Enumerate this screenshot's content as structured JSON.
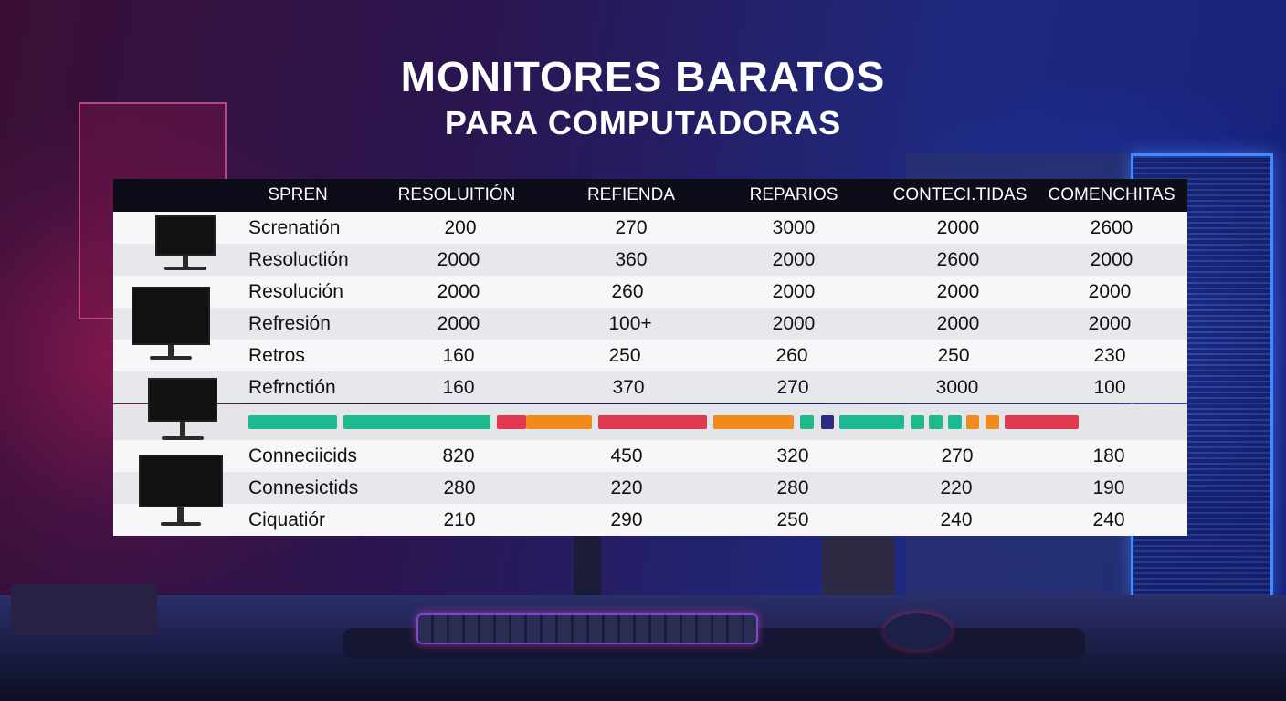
{
  "title": {
    "line1": "MONITORES BARATOS",
    "line2": "PARA COMPUTADORAS"
  },
  "table": {
    "headers": [
      "SPREN",
      "RESOLUITIÓN",
      "REFIENDA",
      "REPARIOS",
      "CONTECI.TIDAS",
      "COMENCHITAS"
    ],
    "rows": [
      {
        "label": "Screnatión",
        "values": [
          "200",
          "270",
          "3000",
          "2000",
          "2600"
        ]
      },
      {
        "label": "Resoluctión",
        "values": [
          "2000",
          "360",
          "2000",
          "2600",
          "2000"
        ]
      },
      {
        "label": "Resolución",
        "values": [
          "2000",
          "260",
          "2000",
          "2000",
          "2000"
        ]
      },
      {
        "label": "Refresión",
        "values": [
          "2000",
          "100+",
          "2000",
          "2000",
          "2000"
        ]
      },
      {
        "label": "Retros",
        "values": [
          "160",
          "250",
          "260",
          "250",
          "230"
        ]
      },
      {
        "label": "Refrnctión",
        "values": [
          "160",
          "370",
          "270",
          "3000",
          "100"
        ]
      },
      {
        "label": "Conneciicids",
        "values": [
          "820",
          "450",
          "320",
          "270",
          "180"
        ]
      },
      {
        "label": "Connesictids",
        "values": [
          "280",
          "220",
          "280",
          "220",
          "190"
        ]
      },
      {
        "label": "Ciquatiór",
        "values": [
          "210",
          "290",
          "250",
          "240",
          "240"
        ]
      }
    ],
    "bar_colors": {
      "green": "#1db990",
      "red": "#e0384f",
      "orange": "#f08a1c",
      "navy": "#2b2c86"
    },
    "bar_segments": [
      "green",
      "green",
      "red",
      "orange",
      "red",
      "orange",
      "green",
      "navy",
      "green",
      "green",
      "green",
      "green",
      "orange",
      "orange",
      "red"
    ]
  },
  "colors": {
    "header_bg": "#0d0d1a",
    "row_light": "#f7f7f9",
    "row_dark": "#e7e8eb",
    "accent_blue": "#3f8bff",
    "accent_pink": "#e0307a"
  }
}
